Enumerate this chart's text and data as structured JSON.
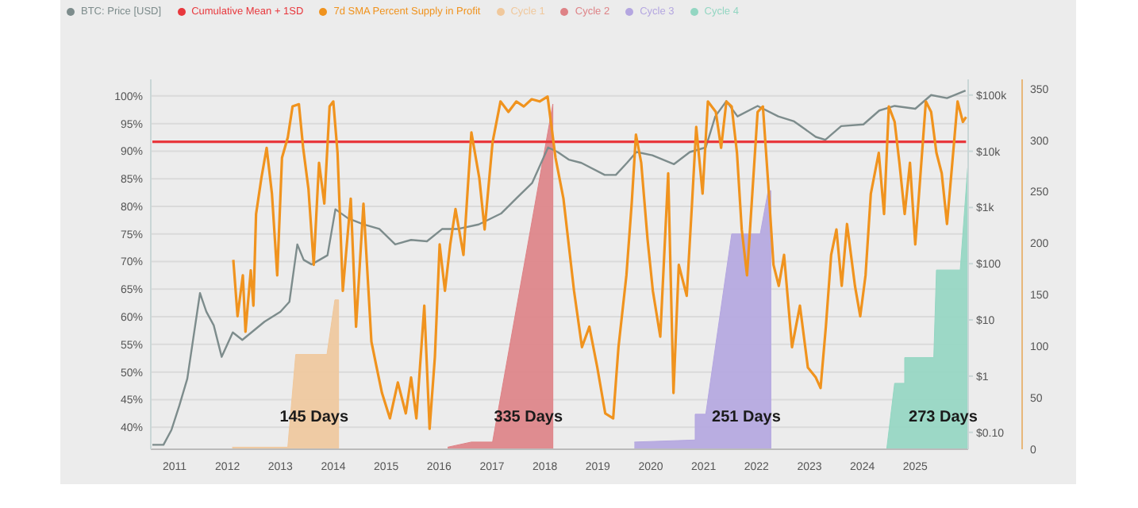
{
  "chart_data": {
    "type": "line",
    "legend": "top left",
    "grid": "y",
    "log": "y2",
    "xlim": [
      2010.55,
      2026.0
    ],
    "xticks": [
      2011,
      2012,
      2013,
      2014,
      2015,
      2016,
      2017,
      2018,
      2019,
      2020,
      2021,
      2022,
      2023,
      2024,
      2025
    ],
    "ylim": [
      36,
      103
    ],
    "yticks": [
      {
        "value": 40,
        "label": "40%"
      },
      {
        "value": 45,
        "label": "45%"
      },
      {
        "value": 50,
        "label": "50%"
      },
      {
        "value": 55,
        "label": "55%"
      },
      {
        "value": 60,
        "label": "60%"
      },
      {
        "value": 65,
        "label": "65%"
      },
      {
        "value": 70,
        "label": "70%"
      },
      {
        "value": 75,
        "label": "75%"
      },
      {
        "value": 80,
        "label": "80%"
      },
      {
        "value": 85,
        "label": "85%"
      },
      {
        "value": 90,
        "label": "90%"
      },
      {
        "value": 95,
        "label": "95%"
      },
      {
        "value": 100,
        "label": "100%"
      }
    ],
    "y2lim": [
      0.05,
      190000
    ],
    "y2ticks": [
      {
        "value": 0.1,
        "label": "$0.10"
      },
      {
        "value": 1,
        "label": "$1"
      },
      {
        "value": 10,
        "label": "$10"
      },
      {
        "value": 100,
        "label": "$100"
      },
      {
        "value": 1000,
        "label": "$1k"
      },
      {
        "value": 10000,
        "label": "$10k"
      },
      {
        "value": 100000,
        "label": "$100k"
      }
    ],
    "y3lim": [
      0,
      359
    ],
    "y3ticks": [
      0,
      50,
      100,
      150,
      200,
      250,
      300,
      350
    ],
    "annotations": [
      "145 Days",
      "335 Days",
      "251 Days",
      "273 Days"
    ],
    "series": [
      {
        "name": "BTC: Price [USD]",
        "color": "#7d8c8c",
        "type": "line",
        "axis": "y2",
        "x": [
          2010.58,
          2010.79,
          2010.94,
          2011.09,
          2011.24,
          2011.48,
          2011.6,
          2011.74,
          2011.89,
          2012.1,
          2012.28,
          2012.7,
          2013.0,
          2013.17,
          2013.32,
          2013.44,
          2013.59,
          2013.89,
          2014.04,
          2014.28,
          2014.57,
          2014.87,
          2015.17,
          2015.47,
          2015.77,
          2016.06,
          2016.36,
          2016.75,
          2017.17,
          2017.46,
          2017.76,
          2018.06,
          2018.24,
          2018.45,
          2018.69,
          2019.13,
          2019.34,
          2019.55,
          2019.73,
          2020.03,
          2020.44,
          2020.74,
          2021.04,
          2021.22,
          2021.43,
          2021.64,
          2022.02,
          2022.41,
          2022.71,
          2023.12,
          2023.3,
          2023.6,
          2024.02,
          2024.32,
          2024.61,
          2025.0,
          2025.3,
          2025.6,
          2025.95
        ],
        "values": [
          0.06,
          0.06,
          0.11,
          0.3,
          0.9,
          30,
          14,
          8,
          2.2,
          6,
          4.4,
          9.3,
          14,
          21,
          220,
          117,
          97,
          141,
          930,
          640,
          500,
          415,
          220,
          265,
          250,
          415,
          415,
          500,
          780,
          1450,
          2750,
          11700,
          9700,
          7100,
          6200,
          3800,
          3800,
          6200,
          9700,
          8500,
          5900,
          9700,
          11700,
          41700,
          78000,
          41700,
          64000,
          41700,
          34000,
          18000,
          16000,
          28000,
          30000,
          53000,
          64000,
          57000,
          100000,
          88000,
          120000
        ]
      },
      {
        "name": "Cumulative Mean + 1SD",
        "color": "#e8383d",
        "type": "line",
        "axis": "y",
        "x": [
          2010.58,
          2025.96
        ],
        "values": [
          91.7,
          91.7
        ]
      },
      {
        "name": "7d SMA Percent Supply in Profit",
        "color": "#f0931e",
        "type": "line",
        "axis": "y",
        "x": [
          2012.11,
          2012.19,
          2012.29,
          2012.34,
          2012.44,
          2012.49,
          2012.54,
          2012.64,
          2012.74,
          2012.84,
          2012.94,
          2013.03,
          2013.14,
          2013.23,
          2013.35,
          2013.43,
          2013.53,
          2013.63,
          2013.73,
          2013.83,
          2013.93,
          2014.0,
          2014.08,
          2014.18,
          2014.33,
          2014.43,
          2014.57,
          2014.72,
          2014.82,
          2014.92,
          2015.07,
          2015.22,
          2015.37,
          2015.47,
          2015.57,
          2015.72,
          2015.82,
          2015.92,
          2016.01,
          2016.11,
          2016.21,
          2016.31,
          2016.46,
          2016.61,
          2016.76,
          2016.86,
          2017.01,
          2017.16,
          2017.31,
          2017.46,
          2017.6,
          2017.75,
          2017.9,
          2018.05,
          2018.2,
          2018.35,
          2018.55,
          2018.7,
          2018.84,
          2018.99,
          2019.14,
          2019.29,
          2019.39,
          2019.54,
          2019.64,
          2019.72,
          2019.82,
          2019.94,
          2020.04,
          2020.18,
          2020.33,
          2020.43,
          2020.53,
          2020.68,
          2020.78,
          2020.86,
          2020.98,
          2021.08,
          2021.23,
          2021.33,
          2021.43,
          2021.53,
          2021.63,
          2021.72,
          2021.82,
          2021.92,
          2022.02,
          2022.12,
          2022.22,
          2022.32,
          2022.42,
          2022.52,
          2022.67,
          2022.82,
          2022.97,
          2023.12,
          2023.21,
          2023.31,
          2023.41,
          2023.51,
          2023.61,
          2023.71,
          2023.86,
          2023.96,
          2024.06,
          2024.16,
          2024.31,
          2024.41,
          2024.5,
          2024.61,
          2024.7,
          2024.8,
          2024.9,
          2025.0,
          2025.1,
          2025.2,
          2025.3,
          2025.4,
          2025.5,
          2025.6,
          2025.7,
          2025.8,
          2025.9,
          2025.96
        ],
        "values": [
          70.3,
          60.1,
          67.5,
          57.3,
          68.4,
          62.0,
          78.6,
          85.1,
          90.6,
          82.3,
          67.5,
          88.8,
          92.5,
          98.1,
          98.5,
          90.6,
          83.2,
          69.4,
          87.9,
          80.5,
          98.1,
          99.0,
          89.7,
          64.7,
          81.4,
          58.2,
          80.5,
          55.5,
          50.8,
          46.2,
          41.6,
          48.1,
          42.5,
          49.0,
          41.6,
          62.0,
          39.7,
          52.7,
          73.1,
          64.7,
          73.1,
          79.5,
          71.2,
          93.4,
          85.1,
          75.8,
          91.6,
          99.0,
          97.1,
          99.0,
          98.1,
          99.4,
          99.0,
          99.9,
          88.8,
          81.4,
          64.7,
          54.5,
          58.2,
          50.8,
          42.5,
          41.6,
          54.5,
          67.5,
          80.5,
          93.0,
          87.9,
          74.0,
          64.7,
          56.4,
          86.0,
          46.2,
          69.4,
          63.8,
          80.5,
          94.4,
          82.3,
          99.0,
          97.1,
          90.6,
          99.0,
          98.1,
          89.7,
          75.8,
          67.5,
          82.3,
          97.1,
          98.1,
          84.2,
          69.4,
          65.6,
          71.2,
          54.5,
          62.0,
          50.8,
          49.0,
          47.1,
          58.2,
          71.2,
          75.8,
          65.6,
          76.8,
          65.6,
          60.1,
          67.5,
          82.3,
          89.7,
          78.6,
          98.1,
          95.3,
          87.9,
          78.6,
          87.9,
          73.1,
          86.0,
          99.0,
          97.1,
          89.7,
          86.0,
          76.8,
          87.9,
          99.0,
          95.3,
          96.2
        ]
      },
      {
        "name": "Cycle 1",
        "color": "#f0c89c",
        "type": "area",
        "axis": "y3",
        "x": [
          2012.09,
          2013.14,
          2013.29,
          2013.88,
          2014.03,
          2014.1,
          2014.1
        ],
        "values": [
          2,
          2,
          92,
          92,
          145,
          145,
          0
        ]
      },
      {
        "name": "Cycle 2",
        "color": "#de8286",
        "type": "area",
        "axis": "y3",
        "x": [
          2016.16,
          2016.61,
          2017.01,
          2018.15,
          2018.15
        ],
        "values": [
          2,
          7,
          7,
          335,
          0
        ]
      },
      {
        "name": "Cycle 3",
        "color": "#b4a6e0",
        "type": "area",
        "axis": "y3",
        "x": [
          2019.69,
          2020.84,
          2020.84,
          2021.04,
          2021.53,
          2022.07,
          2022.22,
          2022.27,
          2022.27
        ],
        "values": [
          7,
          9,
          34,
          34,
          209,
          209,
          251,
          251,
          0
        ]
      },
      {
        "name": "Cycle 4",
        "color": "#93d6c2",
        "type": "area",
        "axis": "y3",
        "x": [
          2024.46,
          2024.61,
          2024.8,
          2024.8,
          2025.35,
          2025.4,
          2025.85,
          2025.99
        ],
        "values": [
          0,
          64,
          64,
          89,
          89,
          174,
          174,
          273
        ]
      }
    ]
  }
}
